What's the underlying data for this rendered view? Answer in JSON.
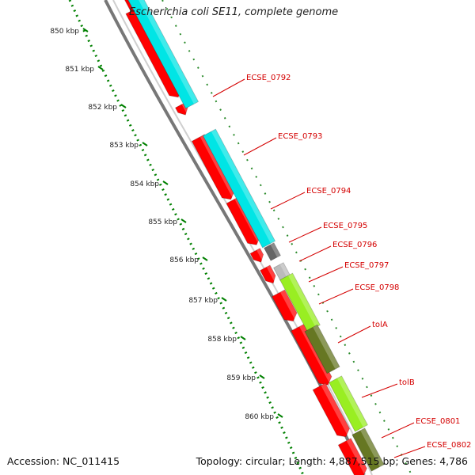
{
  "title": "Escherichia coli SE11, complete genome",
  "footer": {
    "accession": "Accession: NC_011415",
    "summary": "Topology: circular; Length: 4,887,515 bp; Genes: 4,786"
  },
  "colors": {
    "backbone": "#888888",
    "ruler_dots": "#008000",
    "label_text": "#d40000",
    "leader_line": "#d40000",
    "red_gene": "#ff0000",
    "cyan_gene": "#00e5e5",
    "lime_gene": "#99ee22",
    "olive_gene": "#667722",
    "gray_gene": "#666666",
    "light_gray_gene": "#bbbbbb"
  },
  "ruler_ticks": [
    "850 kbp",
    "851 kbp",
    "852 kbp",
    "853 kbp",
    "854 kbp",
    "855 kbp",
    "856 kbp",
    "857 kbp",
    "858 kbp",
    "859 kbp",
    "860 kbp"
  ],
  "gene_labels": [
    "ECSE_0792",
    "ECSE_0793",
    "ECSE_0794",
    "ECSE_0795",
    "ECSE_0796",
    "ECSE_0797",
    "ECSE_0798",
    "tolA",
    "tolB",
    "ECSE_0801",
    "ECSE_0802"
  ]
}
